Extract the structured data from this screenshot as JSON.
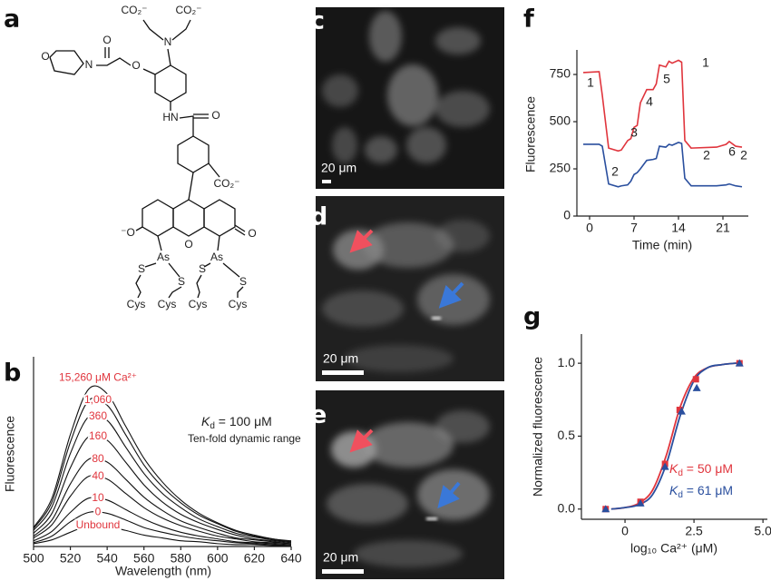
{
  "panel_labels": [
    "a",
    "b",
    "c",
    "d",
    "e",
    "f",
    "g"
  ],
  "structure": {
    "labels": [
      "CO₂⁻",
      "CO₂⁻",
      "N",
      "O",
      "O",
      "N",
      "O",
      "HN",
      "O",
      "CO₂⁻",
      "⁻O",
      "O",
      "O",
      "As",
      "As",
      "S",
      "S",
      "S",
      "S",
      "Cys",
      "Cys",
      "Cys",
      "Cys"
    ]
  },
  "images": [
    {
      "scale_bar": "20 μm"
    },
    {
      "scale_bar": "20 μm"
    },
    {
      "scale_bar": "20 μm"
    }
  ],
  "chart_data": [
    {
      "type": "line",
      "xlabel": "Wavelength (nm)",
      "ylabel": "Fluorescence",
      "x": [
        500,
        510,
        520,
        530,
        540,
        550,
        560,
        570,
        580,
        590,
        600,
        610,
        620,
        630,
        640
      ],
      "xlim": [
        500,
        640
      ],
      "xticks": [
        500,
        520,
        540,
        560,
        580,
        600,
        620,
        640
      ],
      "ylim": [
        0,
        200
      ],
      "label_color": "#e0353d",
      "series": [
        {
          "name": "15,260 μM Ca²⁺",
          "color": "#111111",
          "values": [
            20,
            51,
            118,
            166,
            161,
            127,
            93,
            68,
            49,
            35,
            25,
            17,
            12,
            8,
            6
          ]
        },
        {
          "name": "1,060",
          "color": "#111111",
          "values": [
            19,
            47,
            110,
            154,
            149,
            118,
            86,
            63,
            46,
            33,
            24,
            16,
            11,
            8,
            5
          ]
        },
        {
          "name": "360",
          "color": "#111111",
          "values": [
            17,
            42,
            98,
            137,
            133,
            105,
            77,
            56,
            41,
            29,
            21,
            14,
            10,
            7,
            5
          ]
        },
        {
          "name": "160",
          "color": "#111111",
          "values": [
            14,
            35,
            83,
            116,
            112,
            89,
            65,
            47,
            34,
            25,
            18,
            12,
            8,
            6,
            4
          ]
        },
        {
          "name": "80",
          "color": "#111111",
          "values": [
            11,
            28,
            66,
            92,
            89,
            71,
            52,
            38,
            27,
            20,
            14,
            9,
            7,
            5,
            3
          ]
        },
        {
          "name": "40",
          "color": "#111111",
          "values": [
            9,
            23,
            53,
            74,
            71,
            56,
            41,
            30,
            22,
            16,
            11,
            8,
            5,
            4,
            3
          ]
        },
        {
          "name": "10",
          "color": "#111111",
          "values": [
            6,
            16,
            36,
            51,
            49,
            39,
            29,
            21,
            15,
            11,
            8,
            5,
            4,
            3,
            2
          ]
        },
        {
          "name": "0",
          "color": "#111111",
          "values": [
            4,
            11,
            26,
            36,
            35,
            28,
            20,
            15,
            11,
            8,
            6,
            4,
            3,
            2,
            1
          ]
        },
        {
          "name": "Unbound",
          "color": "#111111",
          "values": [
            3,
            7,
            15,
            22,
            21,
            17,
            12,
            9,
            6,
            5,
            3,
            2,
            2,
            1,
            1
          ]
        }
      ],
      "annotations": {
        "kd_symbol": "K",
        "kd_subscript": "d",
        "kd_text": " = 100 μM",
        "note": "Ten-fold dynamic range"
      }
    },
    {
      "type": "line",
      "xlabel": "Time (min)",
      "ylabel": "Fluorescence",
      "x": [
        -1,
        1.5,
        2,
        3,
        4.5,
        5,
        6,
        6.5,
        7,
        7.5,
        8,
        9,
        10,
        10.5,
        11,
        12,
        12.5,
        13,
        14,
        14.5,
        15,
        16,
        20,
        21.5,
        22,
        23,
        24
      ],
      "xlim": [
        -2,
        25
      ],
      "xticks": [
        0,
        7,
        14,
        21
      ],
      "ylim": [
        0,
        880
      ],
      "yticks": [
        0,
        250,
        500,
        750
      ],
      "series": [
        {
          "color": "#e0353d",
          "values": [
            760,
            765,
            640,
            360,
            345,
            350,
            400,
            410,
            470,
            480,
            600,
            670,
            670,
            700,
            800,
            790,
            820,
            810,
            825,
            815,
            400,
            360,
            365,
            380,
            395,
            370,
            365
          ]
        },
        {
          "color": "#2a4f9e",
          "values": [
            380,
            380,
            370,
            170,
            155,
            160,
            165,
            185,
            220,
            230,
            250,
            295,
            300,
            305,
            370,
            365,
            380,
            375,
            390,
            385,
            200,
            160,
            160,
            165,
            170,
            160,
            155
          ]
        }
      ],
      "annotations": [
        "1",
        "2",
        "3",
        "4",
        "5",
        "1",
        "2",
        "6",
        "2"
      ]
    },
    {
      "type": "scatter",
      "xlabel": "log₁₀ Ca²⁺ (μM)",
      "ylabel": "Normalized fluorescence",
      "xlim": [
        -1.58,
        5.16
      ],
      "xticks": [
        0,
        2.5,
        {
          "value": 5,
          "label": "5.0"
        }
      ],
      "ylim": [
        -0.07,
        1.2
      ],
      "yticks": [
        {
          "value": 0,
          "label": "0.0"
        },
        0.5,
        {
          "value": 1,
          "label": "1.0"
        }
      ],
      "series": [
        {
          "color": "#e0353d",
          "marker": "square",
          "x": [
            -0.7,
            0.56,
            1.45,
            1.98,
            2.57,
            4.15
          ],
          "values": [
            0,
            0.05,
            0.31,
            0.68,
            0.89,
            1.0
          ],
          "fit_x": [
            -0.5,
            0,
            0.5,
            1,
            1.5,
            2,
            2.5,
            3,
            3.5,
            4,
            4.2
          ],
          "fit_values": [
            0,
            0.01,
            0.04,
            0.13,
            0.37,
            0.7,
            0.9,
            0.97,
            0.99,
            1.0,
            1.0
          ],
          "label": {
            "symbol": "K",
            "subscript": "d",
            "text": " = 50 μM"
          }
        },
        {
          "color": "#2a4f9e",
          "marker": "triangle",
          "x": [
            -0.7,
            0.56,
            1.45,
            2.05,
            2.6,
            4.15
          ],
          "values": [
            0,
            0.04,
            0.29,
            0.67,
            0.83,
            1.0
          ],
          "fit_x": [
            -0.5,
            0,
            0.5,
            1,
            1.5,
            2,
            2.5,
            3,
            3.5,
            4,
            4.2
          ],
          "fit_values": [
            0,
            0.01,
            0.03,
            0.1,
            0.31,
            0.64,
            0.88,
            0.97,
            0.99,
            1.0,
            1.0
          ],
          "label": {
            "symbol": "K",
            "subscript": "d",
            "text": " = 61 μM"
          }
        }
      ]
    }
  ]
}
